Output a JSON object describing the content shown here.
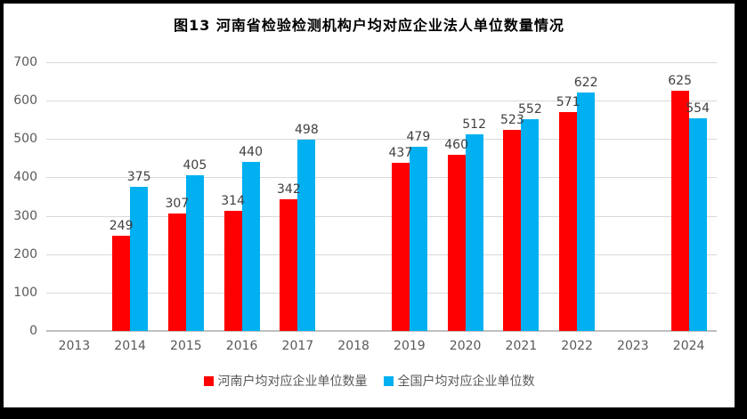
{
  "chart_data": {
    "type": "bar",
    "title": "图13 河南省检验检测机构户均对应企业法人单位数量情况",
    "categories": [
      "2013",
      "2014",
      "2015",
      "2016",
      "2017",
      "2018",
      "2019",
      "2020",
      "2021",
      "2022",
      "2023",
      "2024"
    ],
    "series": [
      {
        "name": "河南户均对应企业单位数量",
        "color": "#ff0000",
        "values": [
          null,
          249,
          307,
          314,
          342,
          null,
          437,
          460,
          523,
          571,
          null,
          625
        ]
      },
      {
        "name": "全国户均对应企业单位数",
        "color": "#00b0f0",
        "values": [
          null,
          375,
          405,
          440,
          498,
          null,
          479,
          512,
          552,
          622,
          null,
          554
        ]
      }
    ],
    "ylim": [
      0,
      700
    ],
    "ytick_step": 100,
    "grid": true,
    "legend_position": "bottom",
    "value_labels": true,
    "colors": {
      "gridline": "#d9d9d9",
      "axis_line": "#bfbfbf",
      "axis_text": "#595959",
      "value_label": "#404040",
      "title": "#000000",
      "frame_border": "#000000",
      "background": "#ffffff"
    }
  }
}
